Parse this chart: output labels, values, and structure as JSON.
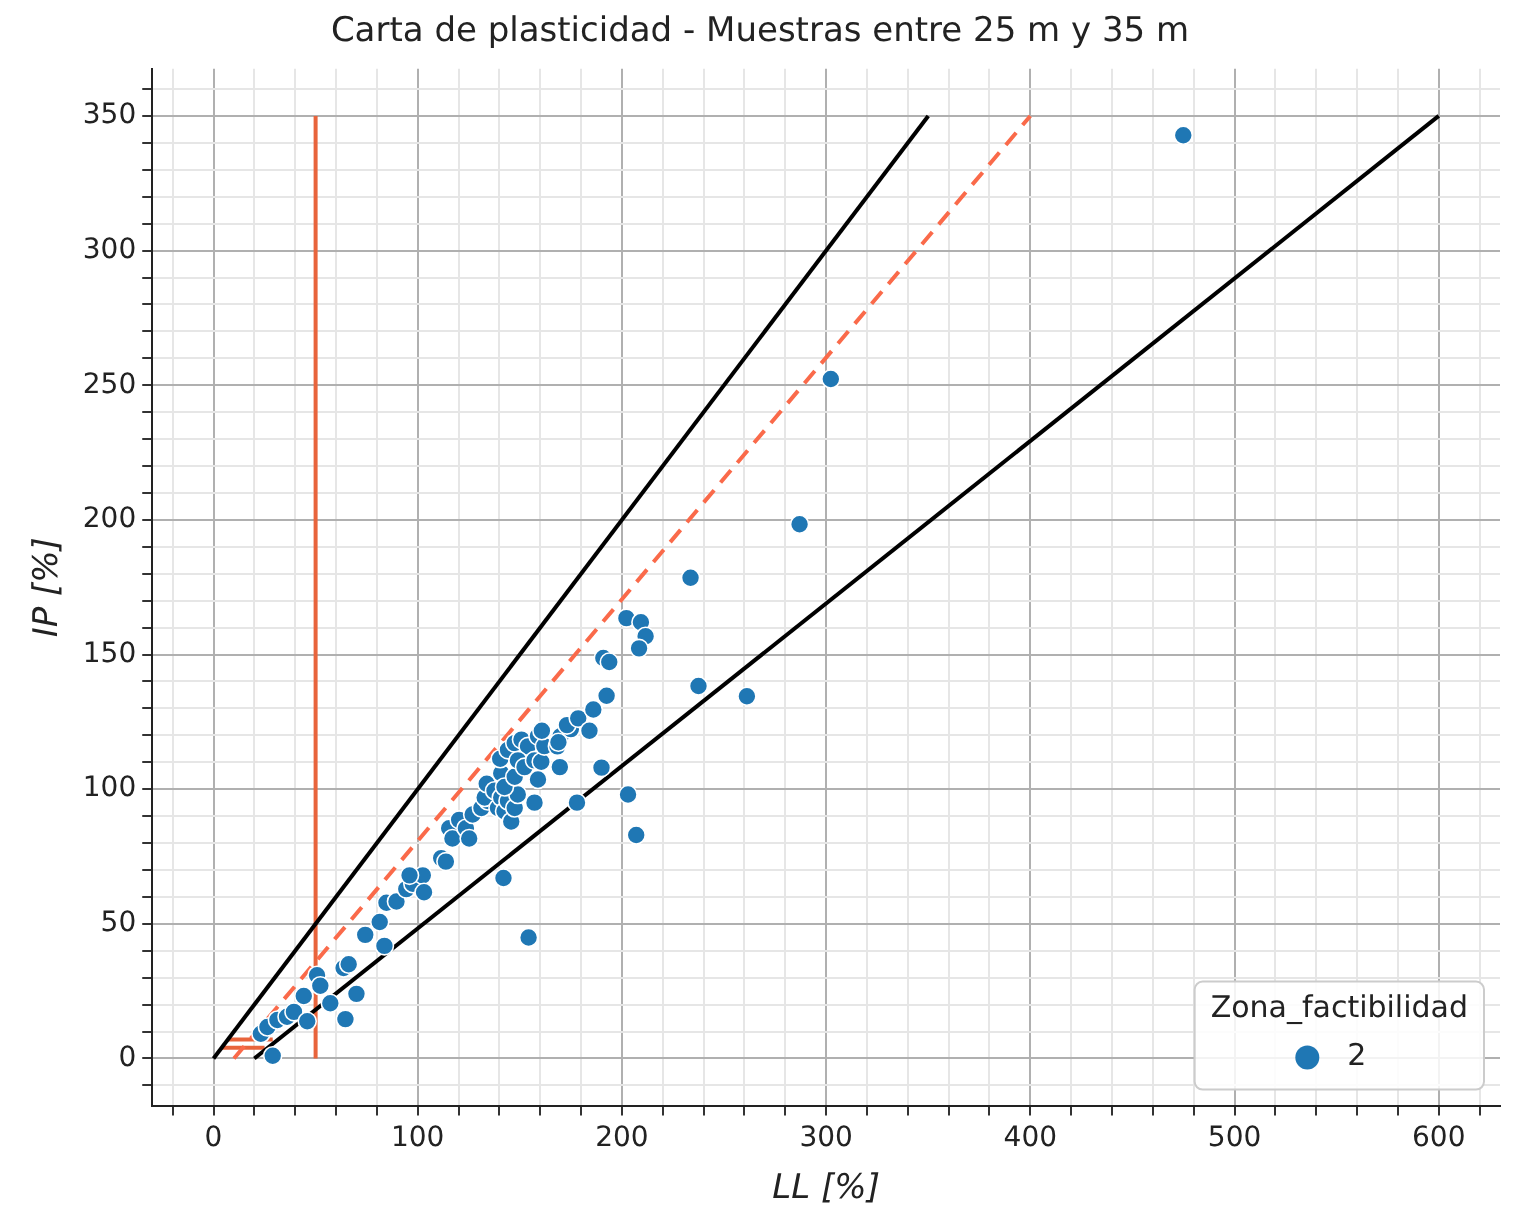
{
  "chart_data": {
    "type": "scatter",
    "title": "Carta de plasticidad - Muestras entre 25 m y 35 m",
    "xlabel": "LL [%]",
    "ylabel": "IP [%]",
    "legend_title": "Zona_factibilidad",
    "legend": "bottom right",
    "grid": true,
    "xlim": [
      -30,
      630
    ],
    "ylim": [
      -17.5,
      367.5
    ],
    "xticks": [
      {
        "value": -20,
        "label": null
      },
      0,
      {
        "value": 20,
        "label": null
      },
      {
        "value": 40,
        "label": null
      },
      {
        "value": 60,
        "label": null
      },
      {
        "value": 80,
        "label": null
      },
      100,
      {
        "value": 120,
        "label": null
      },
      {
        "value": 140,
        "label": null
      },
      {
        "value": 160,
        "label": null
      },
      {
        "value": 180,
        "label": null
      },
      200,
      {
        "value": 220,
        "label": null
      },
      {
        "value": 240,
        "label": null
      },
      {
        "value": 260,
        "label": null
      },
      {
        "value": 280,
        "label": null
      },
      300,
      {
        "value": 320,
        "label": null
      },
      {
        "value": 340,
        "label": null
      },
      {
        "value": 360,
        "label": null
      },
      {
        "value": 380,
        "label": null
      },
      400,
      {
        "value": 420,
        "label": null
      },
      {
        "value": 440,
        "label": null
      },
      {
        "value": 460,
        "label": null
      },
      {
        "value": 480,
        "label": null
      },
      500,
      {
        "value": 520,
        "label": null
      },
      {
        "value": 540,
        "label": null
      },
      {
        "value": 560,
        "label": null
      },
      {
        "value": 580,
        "label": null
      },
      600,
      {
        "value": 620,
        "label": null
      }
    ],
    "yticks": [
      {
        "value": -10,
        "label": null
      },
      0,
      {
        "value": 10,
        "label": null
      },
      {
        "value": 20,
        "label": null
      },
      {
        "value": 30,
        "label": null
      },
      {
        "value": 40,
        "label": null
      },
      50,
      {
        "value": 60,
        "label": null
      },
      {
        "value": 70,
        "label": null
      },
      {
        "value": 80,
        "label": null
      },
      {
        "value": 90,
        "label": null
      },
      100,
      {
        "value": 110,
        "label": null
      },
      {
        "value": 120,
        "label": null
      },
      {
        "value": 130,
        "label": null
      },
      {
        "value": 140,
        "label": null
      },
      150,
      {
        "value": 160,
        "label": null
      },
      {
        "value": 170,
        "label": null
      },
      {
        "value": 180,
        "label": null
      },
      {
        "value": 190,
        "label": null
      },
      200,
      {
        "value": 210,
        "label": null
      },
      {
        "value": 220,
        "label": null
      },
      {
        "value": 230,
        "label": null
      },
      {
        "value": 240,
        "label": null
      },
      250,
      {
        "value": 260,
        "label": null
      },
      {
        "value": 270,
        "label": null
      },
      {
        "value": 280,
        "label": null
      },
      {
        "value": 290,
        "label": null
      },
      300,
      {
        "value": 310,
        "label": null
      },
      {
        "value": 320,
        "label": null
      },
      {
        "value": 330,
        "label": null
      },
      {
        "value": 340,
        "label": null
      },
      350,
      {
        "value": 360,
        "label": null
      }
    ],
    "series": [
      {
        "type": "line",
        "color": "#000000",
        "marker": "none",
        "line_style": "solid",
        "x": [
          0,
          350
        ],
        "values": [
          0,
          350
        ]
      },
      {
        "type": "line",
        "color": "#000000",
        "marker": "none",
        "line_style": "solid",
        "x": [
          20,
          600
        ],
        "values": [
          0,
          350
        ]
      },
      {
        "type": "line",
        "color": "#fa6a4a",
        "marker": "none",
        "line_style": "dashed",
        "x": [
          10,
          400
        ],
        "values": [
          0,
          350
        ]
      },
      {
        "type": "line",
        "color": "#e8643c",
        "marker": "none",
        "line_style": "solid",
        "x": [
          50,
          50
        ],
        "values": [
          0,
          350
        ]
      },
      {
        "type": "line",
        "color": "#e8643c",
        "marker": "none",
        "line_style": "solid",
        "x": [
          4,
          25
        ],
        "values": [
          4,
          4
        ]
      },
      {
        "type": "line",
        "color": "#e8643c",
        "marker": "none",
        "line_style": "solid",
        "x": [
          7,
          29
        ],
        "values": [
          7,
          7
        ]
      },
      {
        "type": "scatter",
        "name": "2",
        "color": "#1f77b4",
        "marker": "circle",
        "x": [
          29,
          23.2,
          26.4,
          31.3,
          36,
          39.4,
          44.2,
          50.7,
          52.3,
          45.9,
          57.2,
          64.6,
          70,
          63.7,
          66.2,
          74.3,
          83.7,
          81.4,
          84.7,
          89.6,
          94.4,
          97.6,
          102.5,
          103.1,
          96,
          111.5,
          113.8,
          142,
          154.3,
          115.4,
          117,
          120.3,
          123.6,
          126.9,
          125.2,
          131.2,
          134.4,
          132.8,
          133.8,
          137.6,
          139.3,
          140.9,
          142.5,
          144.2,
          145.8,
          147.5,
          149,
          140.9,
          142.5,
          147.5,
          140.4,
          144.2,
          147.5,
          150.8,
          154,
          158.9,
          149.1,
          152.3,
          157.2,
          160.5,
          169.6,
          158.9,
          157.2,
          162,
          168.4,
          170,
          175,
          160.8,
          168.9,
          173.1,
          178.6,
          184.1,
          186,
          192.5,
          190.9,
          193.8,
          202.2,
          209.3,
          211.6,
          208.4,
          233.6,
          237.5,
          261.2,
          287,
          302.3,
          474.9,
          203,
          207,
          190,
          178
        ],
        "values": [
          1,
          9.2,
          11.7,
          14.3,
          15.5,
          17.3,
          23.2,
          30.9,
          27,
          13.8,
          20.5,
          14.6,
          24,
          33.6,
          35,
          45.9,
          41.8,
          50.7,
          57.8,
          58.3,
          62.9,
          64.9,
          68,
          61.7,
          68,
          74.4,
          73.1,
          67,
          44.9,
          85.5,
          81.7,
          88.6,
          85.5,
          90.6,
          81.7,
          93,
          95.6,
          96.9,
          102,
          99.4,
          93,
          96.9,
          91.8,
          95.6,
          88,
          93,
          98,
          105.9,
          100.8,
          104.6,
          111.3,
          114.6,
          117.1,
          118.4,
          115.9,
          119.7,
          110.7,
          108.2,
          110.7,
          110.2,
          108.2,
          103.6,
          95,
          116,
          115.9,
          119.7,
          122.3,
          121.7,
          117.4,
          123.8,
          126.3,
          121.7,
          129.6,
          134.7,
          148.7,
          147.2,
          163.5,
          162,
          156.8,
          152.3,
          178.5,
          138.3,
          134.5,
          198.4,
          252.3,
          342.8,
          98,
          83,
          108,
          95
        ]
      }
    ]
  }
}
